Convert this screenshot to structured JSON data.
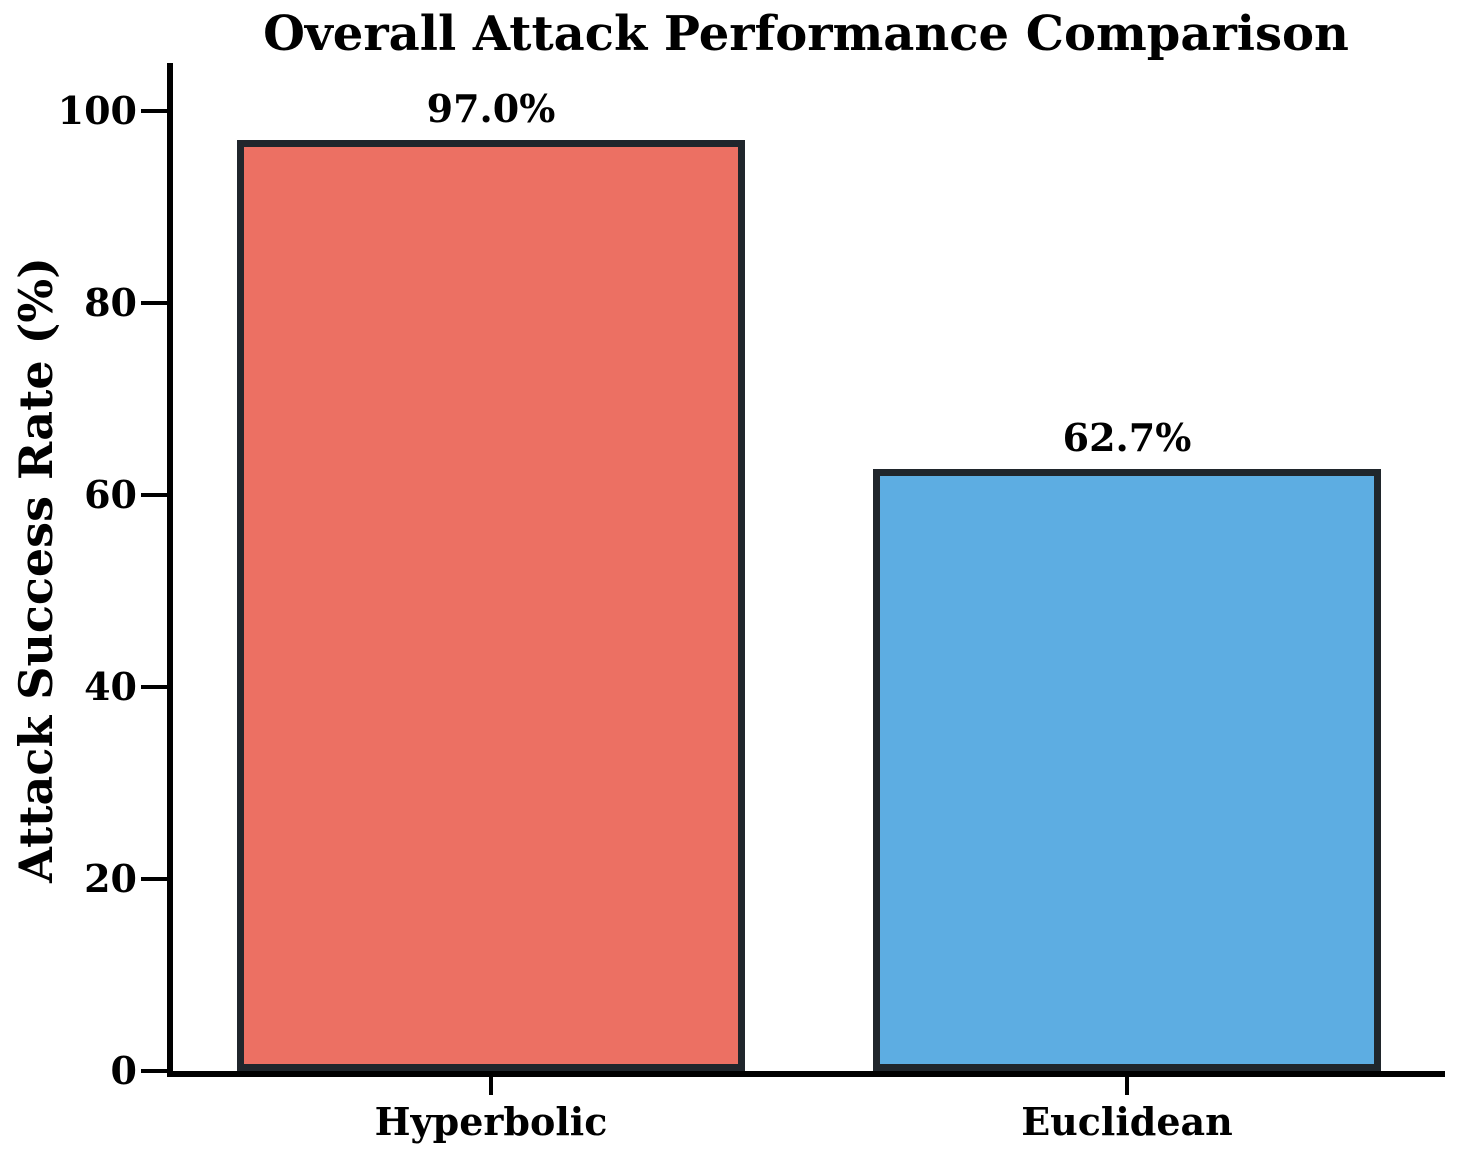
{
  "chart_data": {
    "type": "bar",
    "title": "Overall Attack Performance Comparison",
    "ylabel": "Attack Success Rate (%)",
    "xlabel": "",
    "categories": [
      "Hyperbolic",
      "Euclidean"
    ],
    "values": [
      97.0,
      62.7
    ],
    "value_labels": [
      "97.0%",
      "62.7%"
    ],
    "bar_colors": [
      "#EC7063",
      "#5DADE2"
    ],
    "bar_edge_color": "#20262C",
    "yticks": [
      0,
      20,
      40,
      60,
      80,
      100
    ],
    "ytick_labels": [
      "0",
      "20",
      "40",
      "60",
      "80",
      "100"
    ],
    "ylim": [
      0,
      105
    ],
    "bar_width_fraction": 0.8,
    "grid": false,
    "legend_position": "none",
    "axis_color": "#000000",
    "background_color": "#FFFFFF"
  }
}
